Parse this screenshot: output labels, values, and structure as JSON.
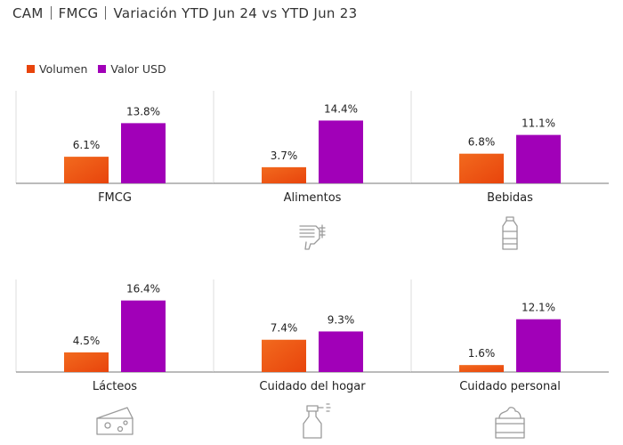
{
  "header": {
    "region": "CAM",
    "category": "FMCG",
    "subtitle": "Variación YTD Jun 24 vs YTD Jun 23"
  },
  "legend": {
    "volume_label": "Volumen",
    "value_label": "Valor USD"
  },
  "colors": {
    "volume": "#e8440c",
    "value": "#a100b8",
    "axis": "#777777",
    "divider": "#dddddd",
    "icon": "#9a9a9a"
  },
  "chart_data": {
    "type": "bar",
    "title": "Variación YTD Jun 24 vs YTD Jun 23",
    "unit": "%",
    "series": [
      {
        "name": "Volumen",
        "values": [
          6.1,
          3.7,
          6.8,
          4.5,
          7.4,
          1.6
        ]
      },
      {
        "name": "Valor USD",
        "values": [
          13.8,
          14.4,
          11.1,
          16.4,
          9.3,
          12.1
        ]
      }
    ],
    "categories": [
      "FMCG",
      "Alimentos",
      "Bebidas",
      "Lácteos",
      "Cuidado del hogar",
      "Cuidado personal"
    ],
    "data_labels": [
      [
        "6.1%",
        "3.7%",
        "6.8%",
        "4.5%",
        "7.4%",
        "1.6%"
      ],
      [
        "13.8%",
        "14.4%",
        "11.1%",
        "16.4%",
        "9.3%",
        "12.1%"
      ]
    ],
    "icons": [
      null,
      "hand-icon",
      "bottle-icon",
      "cheese-icon",
      "spray-bottle-icon",
      "cream-jar-icon"
    ],
    "legend_position": "top-left",
    "grid": false
  }
}
